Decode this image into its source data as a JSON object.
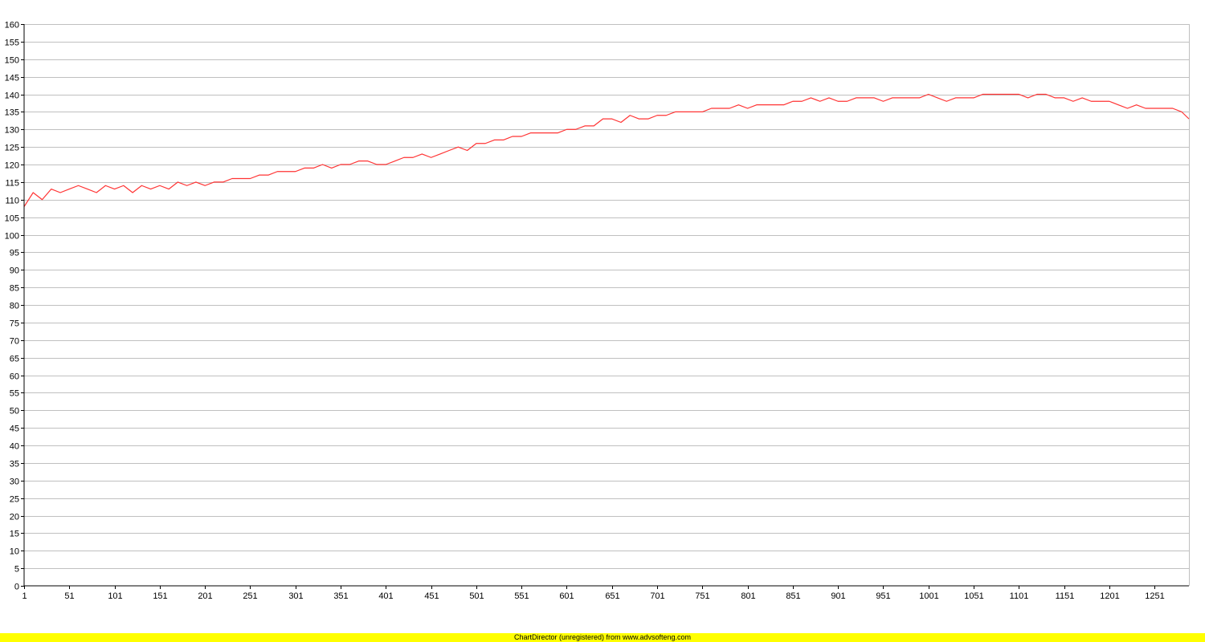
{
  "chart_data": {
    "type": "line",
    "title": "",
    "xlabel": "",
    "ylabel": "",
    "x_range": [
      1,
      1289
    ],
    "ylim": [
      0,
      160
    ],
    "y_ticks": [
      0,
      5,
      10,
      15,
      20,
      25,
      30,
      35,
      40,
      45,
      50,
      55,
      60,
      65,
      70,
      75,
      80,
      85,
      90,
      95,
      100,
      105,
      110,
      115,
      120,
      125,
      130,
      135,
      140,
      145,
      150,
      155,
      160
    ],
    "x_ticks": [
      1,
      51,
      101,
      151,
      201,
      251,
      301,
      351,
      401,
      451,
      501,
      551,
      601,
      651,
      701,
      751,
      801,
      851,
      901,
      951,
      1001,
      1051,
      1101,
      1151,
      1201,
      1251
    ],
    "grid": "horizontal",
    "legend": "none",
    "colors": {
      "series": "#ff3333",
      "grid": "#c0c0c0",
      "axis": "#000000",
      "footer": "#ffff00"
    },
    "series": [
      {
        "name": "",
        "x": [
          1,
          11,
          21,
          31,
          41,
          51,
          61,
          71,
          81,
          91,
          101,
          111,
          121,
          131,
          141,
          151,
          161,
          171,
          181,
          191,
          201,
          211,
          221,
          231,
          241,
          251,
          261,
          271,
          281,
          291,
          301,
          311,
          321,
          331,
          341,
          351,
          361,
          371,
          381,
          391,
          401,
          411,
          421,
          431,
          441,
          451,
          461,
          471,
          481,
          491,
          501,
          511,
          521,
          531,
          541,
          551,
          561,
          571,
          581,
          591,
          601,
          611,
          621,
          631,
          641,
          651,
          661,
          671,
          681,
          691,
          701,
          711,
          721,
          731,
          741,
          751,
          761,
          771,
          781,
          791,
          801,
          811,
          821,
          831,
          841,
          851,
          861,
          871,
          881,
          891,
          901,
          911,
          921,
          931,
          941,
          951,
          961,
          971,
          981,
          991,
          1001,
          1011,
          1021,
          1031,
          1041,
          1051,
          1061,
          1071,
          1081,
          1091,
          1101,
          1111,
          1121,
          1131,
          1141,
          1151,
          1161,
          1171,
          1181,
          1191,
          1201,
          1211,
          1221,
          1231,
          1241,
          1251,
          1261,
          1271,
          1281,
          1289
        ],
        "values": [
          108,
          112,
          110,
          113,
          112,
          113,
          114,
          113,
          112,
          114,
          113,
          114,
          112,
          114,
          113,
          114,
          113,
          115,
          114,
          115,
          114,
          115,
          115,
          116,
          116,
          116,
          117,
          117,
          118,
          118,
          118,
          119,
          119,
          120,
          119,
          120,
          120,
          121,
          121,
          120,
          120,
          121,
          122,
          122,
          123,
          122,
          123,
          124,
          125,
          124,
          126,
          126,
          127,
          127,
          128,
          128,
          129,
          129,
          129,
          129,
          130,
          130,
          131,
          131,
          133,
          133,
          132,
          134,
          133,
          133,
          134,
          134,
          135,
          135,
          135,
          135,
          136,
          136,
          136,
          137,
          136,
          137,
          137,
          137,
          137,
          138,
          138,
          139,
          138,
          139,
          138,
          138,
          139,
          139,
          139,
          138,
          139,
          139,
          139,
          139,
          140,
          139,
          138,
          139,
          139,
          139,
          140,
          140,
          140,
          140,
          140,
          139,
          140,
          140,
          139,
          139,
          138,
          139,
          138,
          138,
          138,
          137,
          136,
          137,
          136,
          136,
          136,
          136,
          135,
          133
        ]
      }
    ]
  },
  "footer": {
    "text": "ChartDirector (unregistered) from www.advsofteng.com"
  }
}
